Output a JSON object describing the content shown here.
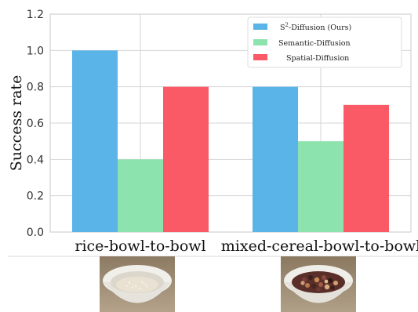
{
  "chart_data": {
    "type": "bar",
    "categories": [
      "rice-bowl-to-bowl",
      "mixed-cereal-bowl-to-bowl"
    ],
    "series": [
      {
        "name_base": "S",
        "name_sup": "2",
        "name_rest": "-Diffusion (Ours)",
        "color": "#5ab4e8",
        "values": [
          1.0,
          0.8
        ]
      },
      {
        "name": "Semantic-Diffusion",
        "color": "#8de3ae",
        "values": [
          0.4,
          0.5
        ]
      },
      {
        "name": "Spatial-Diffusion",
        "color": "#fa5a66",
        "values": [
          0.8,
          0.7
        ]
      }
    ],
    "ylabel": "Success rate",
    "ylim": [
      0,
      1.2
    ],
    "yticks": [
      "0.0",
      "0.2",
      "0.4",
      "0.6",
      "0.8",
      "1.0",
      "1.2"
    ],
    "grid": true,
    "legend_position": "top-right"
  },
  "photos": [
    {
      "name": "rice-bowl-photo",
      "content": "bowl of rice"
    },
    {
      "name": "cereal-bowl-photo",
      "content": "bowl of mixed cereal"
    }
  ]
}
